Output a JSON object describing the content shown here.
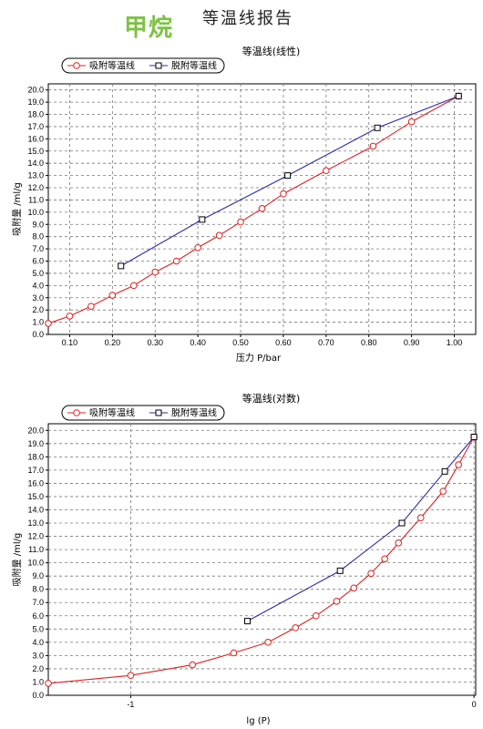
{
  "page": {
    "gas_name": "甲烷",
    "report_title": "等温线报告"
  },
  "colors": {
    "adsorption": "#e02020",
    "desorption": "#2a2aa8"
  },
  "chart_data": [
    {
      "type": "line",
      "title": "等温线(线性)",
      "xlabel": "压力 P/bar",
      "ylabel": "吸附量 /ml/g",
      "xlim": [
        0.05,
        1.05
      ],
      "ylim": [
        0,
        20.5
      ],
      "xticks": [
        0.1,
        0.2,
        0.3,
        0.4,
        0.5,
        0.6,
        0.7,
        0.8,
        0.9,
        1.0
      ],
      "xtick_labels": [
        "0.10",
        "0.20",
        "0.30",
        "0.40",
        "0.50",
        "0.60",
        "0.70",
        "0.80",
        "0.90",
        "1.00"
      ],
      "yticks": [
        0.0,
        1.0,
        2.0,
        3.0,
        4.0,
        5.0,
        6.0,
        7.0,
        8.0,
        9.0,
        10.0,
        11.0,
        12.0,
        13.0,
        14.0,
        15.0,
        16.0,
        17.0,
        18.0,
        19.0,
        20.0
      ],
      "ytick_labels": [
        "0.0",
        "1.0",
        "2.0",
        "3.0",
        "4.0",
        "5.0",
        "6.0",
        "7.0",
        "8.0",
        "9.0",
        "10.0",
        "11.0",
        "12.0",
        "13.0",
        "14.0",
        "15.0",
        "16.0",
        "17.0",
        "18.0",
        "19.0",
        "20.0"
      ],
      "grid": true,
      "legend_position": "top-left",
      "series": [
        {
          "name": "吸附等温线",
          "marker": "circle",
          "x": [
            0.05,
            0.1,
            0.15,
            0.2,
            0.25,
            0.3,
            0.35,
            0.4,
            0.45,
            0.5,
            0.55,
            0.6,
            0.7,
            0.81,
            0.9,
            1.01
          ],
          "y": [
            0.9,
            1.5,
            2.3,
            3.2,
            4.0,
            5.1,
            6.0,
            7.1,
            8.1,
            9.2,
            10.3,
            11.5,
            13.4,
            15.4,
            17.4,
            19.5
          ]
        },
        {
          "name": "脱附等温线",
          "marker": "square",
          "x": [
            0.22,
            0.41,
            0.61,
            0.82,
            1.01
          ],
          "y": [
            5.6,
            9.4,
            13.0,
            16.9,
            19.5
          ]
        }
      ]
    },
    {
      "type": "line",
      "title": "等温线(对数)",
      "xlabel": "lg (P)",
      "ylabel": "吸附量 /ml/g",
      "xlim": [
        -1.24,
        0.005
      ],
      "ylim": [
        0,
        20.5
      ],
      "xticks": [
        -1,
        0
      ],
      "xtick_labels": [
        "-1",
        "0"
      ],
      "yticks": [
        0.0,
        1.0,
        2.0,
        3.0,
        4.0,
        5.0,
        6.0,
        7.0,
        8.0,
        9.0,
        10.0,
        11.0,
        12.0,
        13.0,
        14.0,
        15.0,
        16.0,
        17.0,
        18.0,
        19.0,
        20.0
      ],
      "ytick_labels": [
        "0.0",
        "1.0",
        "2.0",
        "3.0",
        "4.0",
        "5.0",
        "6.0",
        "7.0",
        "8.0",
        "9.0",
        "10.0",
        "11.0",
        "12.0",
        "13.0",
        "14.0",
        "15.0",
        "16.0",
        "17.0",
        "18.0",
        "19.0",
        "20.0"
      ],
      "grid": true,
      "legend_position": "top-left",
      "series": [
        {
          "name": "吸附等温线",
          "marker": "circle",
          "x": [
            -1.24,
            -1.0,
            -0.82,
            -0.7,
            -0.6,
            -0.52,
            -0.46,
            -0.4,
            -0.35,
            -0.3,
            -0.26,
            -0.22,
            -0.155,
            -0.09,
            -0.045,
            0.0
          ],
          "y": [
            0.9,
            1.5,
            2.3,
            3.2,
            4.0,
            5.1,
            6.0,
            7.1,
            8.1,
            9.2,
            10.3,
            11.5,
            13.4,
            15.4,
            17.4,
            19.5
          ]
        },
        {
          "name": "脱附等温线",
          "marker": "square",
          "x": [
            -0.66,
            -0.39,
            -0.21,
            -0.085,
            0.0
          ],
          "y": [
            5.6,
            9.4,
            13.0,
            16.9,
            19.5
          ]
        }
      ]
    }
  ]
}
